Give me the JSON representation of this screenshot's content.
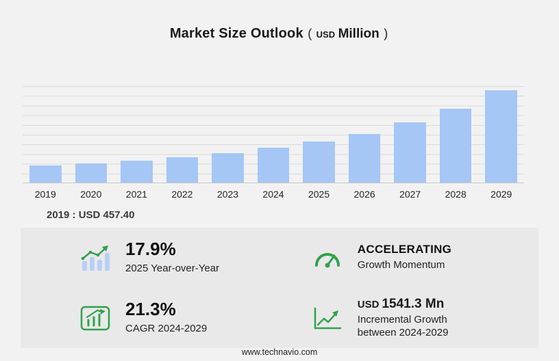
{
  "theme": {
    "green": "#2fa24c",
    "bar_blue": "#a6c6f5",
    "grid_gray": "#dadada",
    "panel_gray": "#e9e9e9",
    "page_gray": "#f2f2f2"
  },
  "title": {
    "main": "Market Size Outlook",
    "open": "(",
    "currency": "USD",
    "unit": "Million",
    "close": ")"
  },
  "chart_data": {
    "type": "bar",
    "categories": [
      "2019",
      "2020",
      "2021",
      "2022",
      "2023",
      "2024",
      "2025",
      "2026",
      "2027",
      "2028",
      "2029"
    ],
    "values": [
      457.4,
      510,
      585,
      675,
      800,
      946.1,
      1115.5,
      1310,
      1620,
      2000,
      2487.4
    ],
    "title": "Market Size Outlook (USD Million)",
    "xlabel": "",
    "ylabel": "",
    "ylim": [
      0,
      2600
    ],
    "grid": true,
    "legend": "none",
    "bar_color": "#a6c6f5"
  },
  "note": {
    "text": "2019 : USD  457.40"
  },
  "stats": {
    "yoy": {
      "icon": "yoy-bars-icon",
      "value": "17.9%",
      "label": "2025 Year-over-Year"
    },
    "momentum": {
      "icon": "speedometer-icon",
      "value": "ACCELERATING",
      "label": "Growth Momentum"
    },
    "cagr": {
      "icon": "cagr-chart-icon",
      "value": "21.3%",
      "label": "CAGR 2024-2029"
    },
    "incremental": {
      "icon": "incremental-growth-icon",
      "currency": "USD",
      "value": "1541.3 Mn",
      "label_line1": "Incremental Growth",
      "label_line2": "between 2024-2029"
    }
  },
  "footer": {
    "text": "www.technavio.com"
  }
}
